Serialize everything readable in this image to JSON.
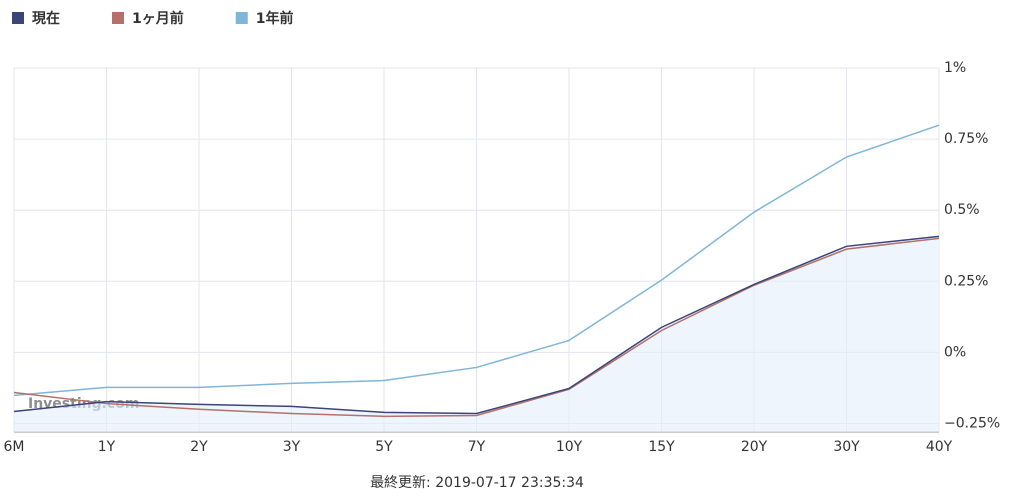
{
  "chart_data": {
    "type": "line",
    "categories": [
      "6M",
      "1Y",
      "2Y",
      "3Y",
      "5Y",
      "7Y",
      "10Y",
      "15Y",
      "20Y",
      "30Y",
      "40Y"
    ],
    "series": [
      {
        "name": "現在",
        "color": "#3a4578",
        "area": true,
        "values": [
          -0.208,
          -0.173,
          -0.183,
          -0.19,
          -0.211,
          -0.215,
          -0.127,
          0.088,
          0.239,
          0.373,
          0.408
        ]
      },
      {
        "name": "1ヶ月前",
        "color": "#b5706a",
        "values": [
          -0.141,
          -0.18,
          -0.2,
          -0.215,
          -0.225,
          -0.222,
          -0.13,
          0.077,
          0.236,
          0.363,
          0.401
        ]
      },
      {
        "name": "1年前",
        "color": "#7fb6d8",
        "values": [
          -0.151,
          -0.123,
          -0.123,
          -0.109,
          -0.099,
          -0.053,
          0.042,
          0.254,
          0.493,
          0.687,
          0.799
        ]
      }
    ],
    "ylim": [
      -0.28,
      1
    ],
    "yticks": [
      {
        "value": 1,
        "label": "1%"
      },
      {
        "value": 0.75,
        "label": "0.75%"
      },
      {
        "value": 0.5,
        "label": "0.5%"
      },
      {
        "value": 0.25,
        "label": "0.25%"
      },
      {
        "value": 0,
        "label": "0%"
      },
      {
        "value": -0.25,
        "label": "−0.25%"
      }
    ],
    "grid": true,
    "watermark": "Investing.com",
    "footer": "最終更新: 2019-07-17 23:35:34"
  }
}
